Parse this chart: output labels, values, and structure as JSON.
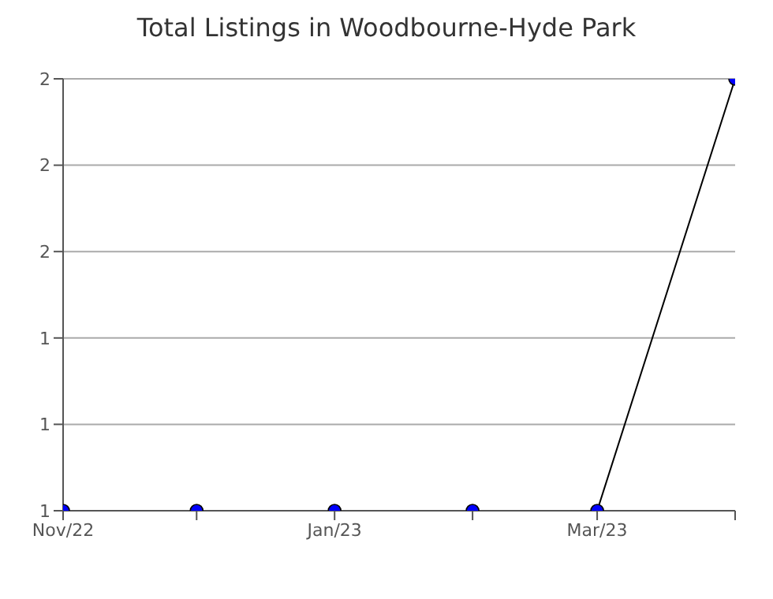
{
  "chart_data": {
    "type": "line",
    "title": "Total Listings in Woodbourne-Hyde Park",
    "x": [
      "2022-11",
      "2022-12",
      "2023-01",
      "2023-02",
      "2023-03",
      "2023-04"
    ],
    "series": [
      {
        "color": "#000000",
        "colors": [
          "#0000ff",
          "#0000ff",
          "#0000ff",
          "#0000ff",
          "#0000ff",
          "#0000ff"
        ],
        "values": [
          1,
          1,
          1,
          1,
          1,
          2
        ]
      }
    ],
    "xlim": [
      "2022-11",
      "2023-04"
    ],
    "xticks": [
      {
        "value": "2022-11",
        "label": "Nov/22"
      },
      {
        "value": "2022-12",
        "label": null
      },
      {
        "value": "2023-01",
        "label": "Jan/23"
      },
      {
        "value": "2023-02",
        "label": null
      },
      {
        "value": "2023-03",
        "label": "Mar/23"
      },
      {
        "value": "2023-04",
        "label": null
      }
    ],
    "ylim": [
      1,
      2
    ],
    "yticks": [
      {
        "value": 1,
        "label": "1"
      },
      {
        "value": 1.2,
        "label": "1"
      },
      {
        "value": 1.4,
        "label": "1"
      },
      {
        "value": 1.6,
        "label": "2"
      },
      {
        "value": 1.8,
        "label": "2"
      },
      {
        "value": 2,
        "label": "2"
      }
    ],
    "grid": "y",
    "marker": "circle",
    "line_style": "solid",
    "legend": false
  }
}
